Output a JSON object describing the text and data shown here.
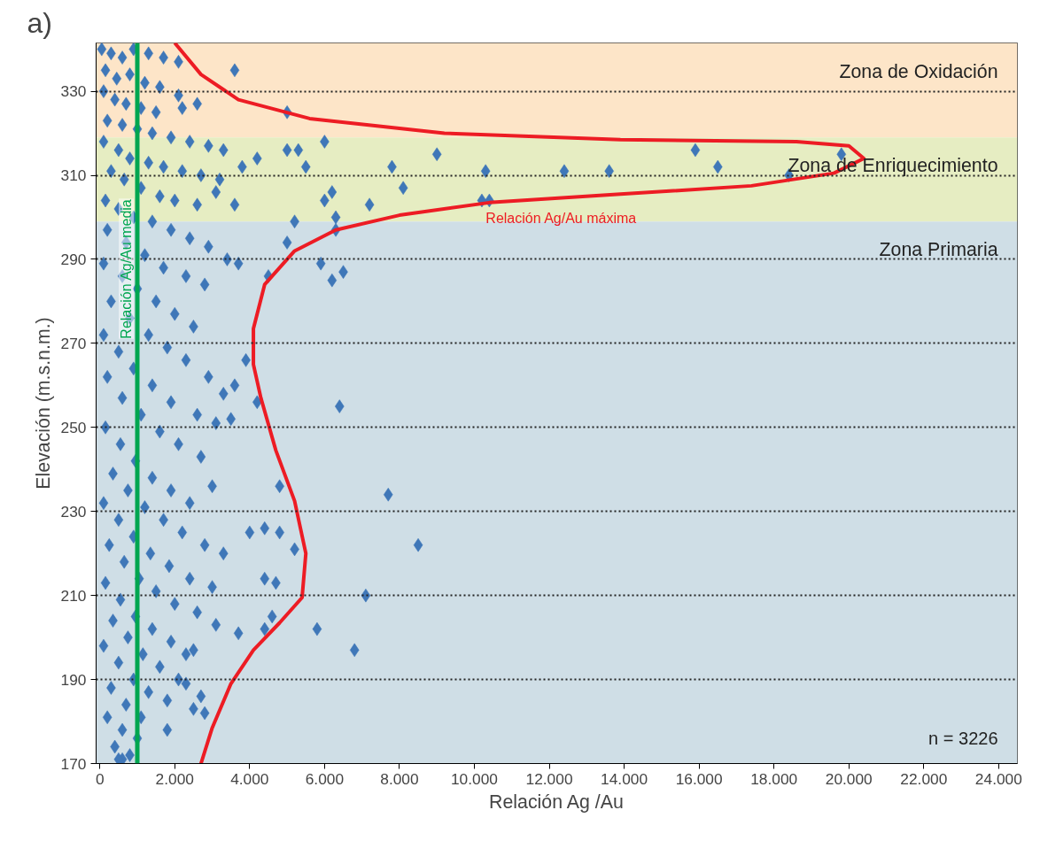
{
  "chart_data": {
    "type": "scatter",
    "xlabel": "Relación Ag /Au",
    "ylabel": "Elevación (m.s.n.m.)",
    "xlim": [
      -100,
      24500
    ],
    "ylim": [
      170,
      341.5
    ],
    "xticks": [
      0,
      {
        "value": 2000,
        "label": "2.000"
      },
      {
        "value": 4000,
        "label": "4.000"
      },
      {
        "value": 6000,
        "label": "6.000"
      },
      {
        "value": 8000,
        "label": "8.000"
      },
      {
        "value": 10000,
        "label": "10.000"
      },
      {
        "value": 12000,
        "label": "12.000"
      },
      {
        "value": 14000,
        "label": "14.000"
      },
      {
        "value": 16000,
        "label": "16.000"
      },
      {
        "value": 18000,
        "label": "18.000"
      },
      {
        "value": 20000,
        "label": "20.000"
      },
      {
        "value": 22000,
        "label": "22.000"
      },
      {
        "value": 24000,
        "label": "24.000"
      }
    ],
    "yticks": [
      170,
      190,
      210,
      230,
      250,
      270,
      290,
      310,
      330
    ],
    "grid": "y",
    "marker": "diamond",
    "bands": [
      {
        "axis": "y",
        "from": 319,
        "to": 341.5,
        "label": "Zona de Oxidación",
        "color": "#fde5c8"
      },
      {
        "axis": "y",
        "from": 299,
        "to": 319,
        "label": "Zona de Enriquecimiento",
        "color": "#e6edc2"
      },
      {
        "axis": "y",
        "from": 170,
        "to": 299,
        "label": "Zona Primaria",
        "color": "#cfdee6"
      }
    ],
    "ref_lines": [
      {
        "axis": "x",
        "value": 1000,
        "label": "Relación Ag/Au media",
        "color": "#00a650",
        "line_style": "solid"
      }
    ],
    "annotations": [
      "a)",
      "n = 3226"
    ],
    "series": [
      {
        "color": "#3f77b8",
        "x": [
          50,
          300,
          600,
          900,
          1300,
          1700,
          2100,
          150,
          450,
          800,
          1200,
          1600,
          2100,
          100,
          400,
          700,
          1100,
          1500,
          2200,
          2600,
          200,
          600,
          1000,
          1400,
          1900,
          2400,
          2900,
          3300,
          100,
          500,
          800,
          1300,
          1700,
          2200,
          2700,
          3200,
          3800,
          4200,
          300,
          650,
          1100,
          1600,
          2000,
          2600,
          3100,
          3600,
          150,
          500,
          900,
          1400,
          1900,
          2400,
          2900,
          3400,
          3700,
          200,
          700,
          1200,
          1700,
          2300,
          2800,
          100,
          600,
          1000,
          1500,
          2000,
          2500,
          300,
          800,
          1300,
          1800,
          2300,
          2900,
          3300,
          100,
          500,
          900,
          1400,
          1900,
          2600,
          3100,
          3500,
          200,
          600,
          1100,
          1600,
          2100,
          2700,
          150,
          550,
          950,
          1400,
          1900,
          2400,
          3000,
          350,
          750,
          1200,
          1700,
          2200,
          2800,
          3300,
          100,
          500,
          900,
          1350,
          1850,
          2400,
          3000,
          250,
          650,
          1050,
          1500,
          2000,
          2600,
          150,
          550,
          950,
          1400,
          1900,
          2500,
          350,
          750,
          1150,
          1600,
          2100,
          100,
          500,
          900,
          1300,
          1800,
          2700,
          300,
          700,
          1100,
          200,
          600,
          1000,
          400,
          800,
          600,
          3600,
          5000,
          6000,
          5000,
          5300,
          9000,
          5500,
          7800,
          10300,
          12400,
          13600,
          15900,
          16500,
          19800,
          18400,
          7200,
          8100,
          10200,
          10400,
          6200,
          6000,
          6300,
          5200,
          5900,
          6200,
          6500,
          6300,
          5000,
          4500,
          3900,
          4200,
          6400,
          4800,
          7700,
          8500,
          4400,
          4800,
          5200,
          4000,
          4400,
          4700,
          7100,
          4600,
          4400,
          5800,
          3700,
          6800,
          3100,
          2300,
          2300,
          2500,
          1800,
          500,
          2800,
          3600
        ],
        "values": [
          340,
          339,
          338,
          340,
          339,
          338,
          337,
          335,
          333,
          334,
          332,
          331,
          329,
          330,
          328,
          327,
          326,
          325,
          326,
          327,
          323,
          322,
          321,
          320,
          319,
          318,
          317,
          316,
          318,
          316,
          314,
          313,
          312,
          311,
          310,
          309,
          312,
          314,
          311,
          309,
          307,
          305,
          304,
          303,
          306,
          303,
          304,
          302,
          300,
          299,
          297,
          295,
          293,
          290,
          289,
          297,
          294,
          291,
          288,
          286,
          284,
          289,
          286,
          283,
          280,
          277,
          274,
          280,
          276,
          272,
          269,
          266,
          262,
          258,
          272,
          268,
          264,
          260,
          256,
          253,
          251,
          252,
          262,
          257,
          253,
          249,
          246,
          243,
          250,
          246,
          242,
          238,
          235,
          232,
          236,
          239,
          235,
          231,
          228,
          225,
          222,
          220,
          232,
          228,
          224,
          220,
          217,
          214,
          212,
          222,
          218,
          214,
          211,
          208,
          206,
          213,
          209,
          205,
          202,
          199,
          197,
          204,
          200,
          196,
          193,
          190,
          198,
          194,
          190,
          187,
          185,
          186,
          188,
          184,
          181,
          181,
          178,
          176,
          174,
          172,
          171,
          335,
          325,
          318,
          316,
          316,
          315,
          312,
          312,
          311,
          311,
          311,
          316,
          312,
          315,
          310,
          303,
          307,
          304,
          304,
          306,
          304,
          300,
          299,
          289,
          285,
          287,
          297,
          294,
          286,
          266,
          256,
          255,
          236,
          234,
          222,
          226,
          225,
          221,
          225,
          214,
          213,
          210,
          205,
          202,
          202,
          201,
          197,
          203,
          196,
          189,
          183,
          178,
          171,
          182,
          260
        ]
      },
      {
        "type": "line",
        "name": "Relación Ag/Au máxima",
        "color": "#ed1c24",
        "line_style": "solid",
        "marker": "none",
        "x": [
          2000,
          2700,
          3700,
          5600,
          9200,
          13900,
          18600,
          20000,
          20400,
          19600,
          17400,
          13900,
          10400,
          8000,
          6300,
          5200,
          4400,
          4100,
          4100,
          4300,
          4700,
          5200,
          5500,
          5400,
          4800,
          4100,
          3500,
          3000,
          2700
        ],
        "values": [
          341.5,
          334,
          328,
          323.5,
          320,
          318.5,
          318,
          317,
          314,
          310.5,
          307.5,
          305.5,
          303.5,
          300.5,
          297,
          292,
          284,
          273.5,
          265,
          257,
          244.5,
          232.5,
          220,
          209.5,
          203.5,
          197,
          189,
          178.5,
          170
        ]
      }
    ]
  }
}
